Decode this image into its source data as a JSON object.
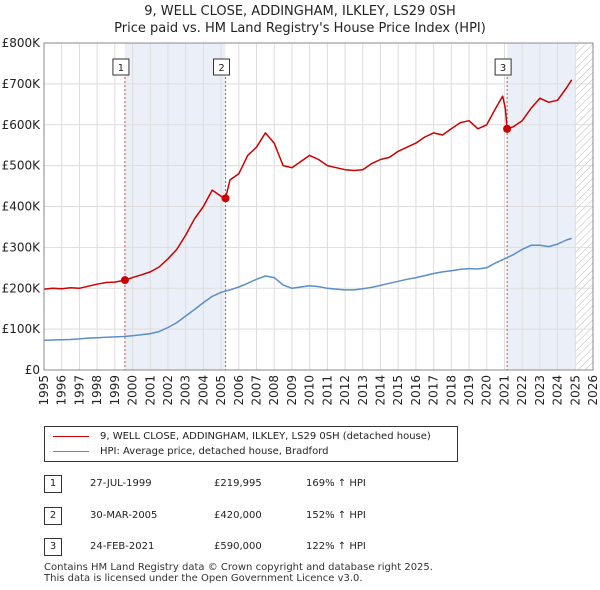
{
  "chart_data": {
    "type": "line",
    "title": "9, WELL CLOSE, ADDINGHAM, ILKLEY, LS29 0SH",
    "subtitle": "Price paid vs. HM Land Registry's House Price Index (HPI)",
    "xlim": [
      1995,
      2026
    ],
    "ylim": [
      0,
      800000
    ],
    "x_ticks": [
      1995,
      1996,
      1997,
      1998,
      1999,
      2000,
      2001,
      2002,
      2003,
      2004,
      2005,
      2006,
      2007,
      2008,
      2009,
      2010,
      2011,
      2012,
      2013,
      2014,
      2015,
      2016,
      2017,
      2018,
      2019,
      2020,
      2021,
      2022,
      2023,
      2024,
      2025,
      2026
    ],
    "y_ticks": [
      {
        "value": 0,
        "label": "£0"
      },
      {
        "value": 100000,
        "label": "£100K"
      },
      {
        "value": 200000,
        "label": "£200K"
      },
      {
        "value": 300000,
        "label": "£300K"
      },
      {
        "value": 400000,
        "label": "£400K"
      },
      {
        "value": 500000,
        "label": "£500K"
      },
      {
        "value": 600000,
        "label": "£600K"
      },
      {
        "value": 700000,
        "label": "£700K"
      },
      {
        "value": 800000,
        "label": "£800K"
      }
    ],
    "grid": true,
    "shaded_periods": [
      [
        1999.57,
        2005.25
      ],
      [
        2021.15,
        2025.0
      ]
    ],
    "future_hatch_from": 2025.0,
    "series": [
      {
        "name": "9, WELL CLOSE, ADDINGHAM, ILKLEY, LS29 0SH (detached house)",
        "color": "#cc0000",
        "x": [
          1995.0,
          1995.5,
          1996.0,
          1996.5,
          1997.0,
          1997.5,
          1998.0,
          1998.5,
          1999.0,
          1999.57,
          2000.0,
          2000.5,
          2001.0,
          2001.5,
          2002.0,
          2002.5,
          2003.0,
          2003.5,
          2004.0,
          2004.5,
          2005.0,
          2005.25,
          2005.5,
          2006.0,
          2006.5,
          2007.0,
          2007.5,
          2008.0,
          2008.5,
          2009.0,
          2009.5,
          2010.0,
          2010.5,
          2011.0,
          2011.5,
          2012.0,
          2012.5,
          2013.0,
          2013.5,
          2014.0,
          2014.5,
          2015.0,
          2015.5,
          2016.0,
          2016.5,
          2017.0,
          2017.5,
          2018.0,
          2018.5,
          2019.0,
          2019.5,
          2020.0,
          2020.5,
          2020.9,
          2021.05,
          2021.15,
          2021.5,
          2022.0,
          2022.5,
          2023.0,
          2023.5,
          2024.0,
          2024.5,
          2024.8
        ],
        "values": [
          198000,
          200000,
          199000,
          201000,
          200000,
          205000,
          210000,
          214000,
          215000,
          219995,
          226000,
          233000,
          240000,
          252000,
          272000,
          295000,
          330000,
          370000,
          400000,
          440000,
          425000,
          420000,
          465000,
          480000,
          525000,
          545000,
          580000,
          555000,
          500000,
          495000,
          510000,
          525000,
          515000,
          500000,
          495000,
          490000,
          488000,
          490000,
          505000,
          515000,
          520000,
          535000,
          545000,
          555000,
          570000,
          580000,
          575000,
          590000,
          605000,
          610000,
          590000,
          600000,
          640000,
          670000,
          640000,
          590000,
          595000,
          610000,
          640000,
          665000,
          655000,
          660000,
          690000,
          710000
        ]
      },
      {
        "name": "HPI: Average price, detached house, Bradford",
        "color": "#5b8ec9",
        "x": [
          1995.0,
          1995.5,
          1996.0,
          1996.5,
          1997.0,
          1997.5,
          1998.0,
          1998.5,
          1999.0,
          1999.5,
          2000.0,
          2000.5,
          2001.0,
          2001.5,
          2002.0,
          2002.5,
          2003.0,
          2003.5,
          2004.0,
          2004.5,
          2005.0,
          2005.5,
          2006.0,
          2006.5,
          2007.0,
          2007.5,
          2008.0,
          2008.5,
          2009.0,
          2009.5,
          2010.0,
          2010.5,
          2011.0,
          2011.5,
          2012.0,
          2012.5,
          2013.0,
          2013.5,
          2014.0,
          2014.5,
          2015.0,
          2015.5,
          2016.0,
          2016.5,
          2017.0,
          2017.5,
          2018.0,
          2018.5,
          2019.0,
          2019.5,
          2020.0,
          2020.5,
          2021.0,
          2021.5,
          2022.0,
          2022.5,
          2023.0,
          2023.5,
          2024.0,
          2024.5,
          2024.8
        ],
        "values": [
          73000,
          73500,
          74000,
          74500,
          76000,
          78000,
          79000,
          80000,
          81000,
          82000,
          84000,
          86000,
          89000,
          94000,
          104000,
          116000,
          132000,
          148000,
          165000,
          180000,
          190000,
          196000,
          203000,
          212000,
          222000,
          230000,
          226000,
          208000,
          200000,
          203000,
          206000,
          204000,
          200000,
          198000,
          196000,
          196000,
          199000,
          202000,
          207000,
          212000,
          217000,
          222000,
          226000,
          231000,
          236000,
          240000,
          243000,
          246000,
          248000,
          247000,
          250000,
          262000,
          272000,
          282000,
          295000,
          305000,
          305000,
          302000,
          308000,
          318000,
          322000
        ]
      }
    ],
    "markers": [
      {
        "label": "1",
        "x": 1999.57,
        "value": 219995
      },
      {
        "label": "2",
        "x": 2005.25,
        "value": 420000
      },
      {
        "label": "3",
        "x": 2021.15,
        "value": 590000
      }
    ]
  },
  "legend": {
    "property_label": "9, WELL CLOSE, ADDINGHAM, ILKLEY, LS29 0SH (detached house)",
    "hpi_label": "HPI: Average price, detached house, Bradford",
    "property_color": "#cc0000",
    "hpi_color": "#5b8ec9"
  },
  "transactions": [
    {
      "num": "1",
      "date": "27-JUL-1999",
      "price": "£219,995",
      "hpi": "169% ↑ HPI"
    },
    {
      "num": "2",
      "date": "30-MAR-2005",
      "price": "£420,000",
      "hpi": "152% ↑ HPI"
    },
    {
      "num": "3",
      "date": "24-FEB-2021",
      "price": "£590,000",
      "hpi": "122% ↑ HPI"
    }
  ],
  "footer": {
    "line1": "Contains HM Land Registry data © Crown copyright and database right 2025.",
    "line2": "This data is licensed under the Open Government Licence v3.0."
  }
}
